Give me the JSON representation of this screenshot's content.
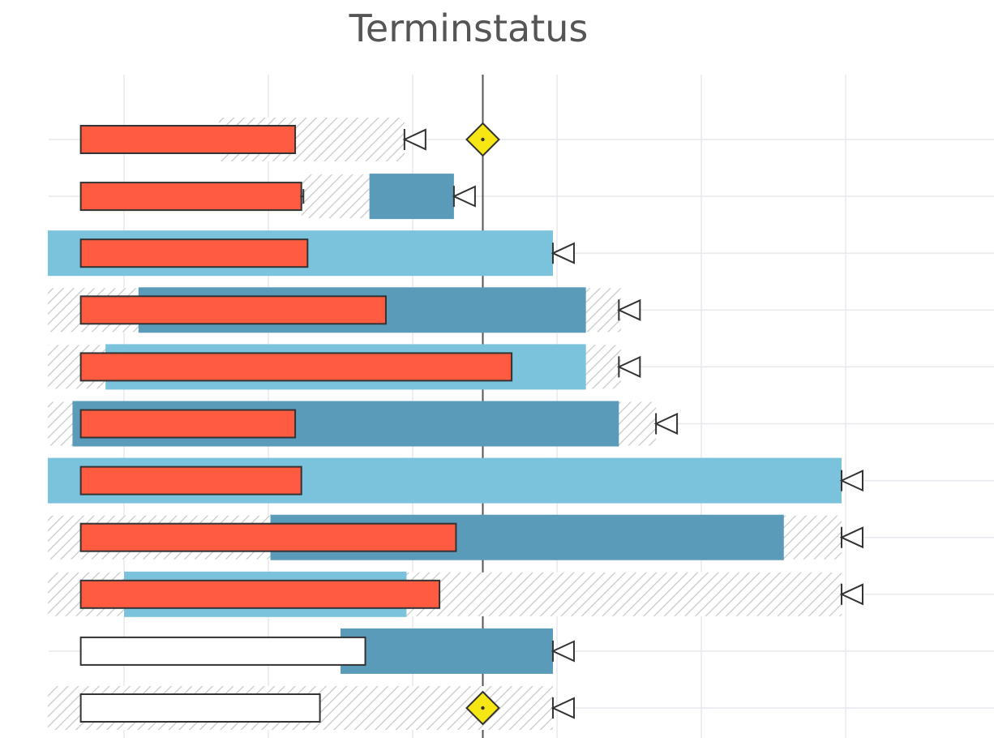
{
  "chart_data": {
    "type": "gantt",
    "title": "Terminstatus",
    "x_unit": "days",
    "xlim": [
      3.3,
      49.2
    ],
    "x_gridlines": [
      7,
      14,
      21,
      28,
      35,
      42
    ],
    "today": 24.4,
    "colors": {
      "actual": "#fe5b41",
      "actual_pending": "#ffffff",
      "plan_light": "#7bc3dc",
      "plan_dark": "#5a9bba",
      "milestone": "#f5e614",
      "hatch": "#c8c8c8",
      "grid": "#e8e8ee",
      "today_line": "#555555"
    },
    "rows": [
      {
        "baseline": [
          11.6,
          20.6
        ],
        "plan": null,
        "actual": [
          4.9,
          15.3
        ],
        "actual_state": "late",
        "deadline": 20.6,
        "milestone": 24.4
      },
      {
        "baseline": [
          15.6,
          18.9
        ],
        "plan": {
          "range": [
            18.9,
            23.0
          ],
          "style": "dark"
        },
        "actual": [
          4.9,
          15.6
        ],
        "actual_state": "late",
        "tick": 15.7,
        "deadline": 23.0
      },
      {
        "baseline": null,
        "plan": {
          "range": [
            3.3,
            27.8
          ],
          "style": "light"
        },
        "actual": [
          4.9,
          15.9
        ],
        "actual_state": "late",
        "deadline": 27.8
      },
      {
        "baseline": [
          3.3,
          31.1
        ],
        "plan": {
          "range": [
            7.7,
            29.4
          ],
          "style": "dark"
        },
        "actual": [
          4.9,
          19.7
        ],
        "actual_state": "late",
        "deadline": 31.0
      },
      {
        "baseline": [
          3.3,
          31.1
        ],
        "plan": {
          "range": [
            6.1,
            29.4
          ],
          "style": "light"
        },
        "actual": [
          4.9,
          25.8
        ],
        "actual_state": "late",
        "deadline": 31.0
      },
      {
        "baseline": [
          3.3,
          32.8
        ],
        "plan": {
          "range": [
            4.5,
            31.0
          ],
          "style": "dark"
        },
        "actual": [
          4.9,
          15.3
        ],
        "actual_state": "late",
        "deadline": 32.8
      },
      {
        "baseline": null,
        "plan": {
          "range": [
            3.3,
            41.8
          ],
          "style": "light"
        },
        "actual": [
          4.9,
          15.6
        ],
        "actual_state": "late",
        "deadline": 41.8
      },
      {
        "baseline": [
          3.3,
          41.8
        ],
        "plan": {
          "range": [
            14.1,
            39.0
          ],
          "style": "dark"
        },
        "actual": [
          4.9,
          23.1
        ],
        "actual_state": "late",
        "deadline": 41.8
      },
      {
        "baseline": [
          3.3,
          41.8
        ],
        "plan": {
          "range": [
            7.0,
            20.7
          ],
          "style": "light"
        },
        "actual": [
          4.9,
          22.3
        ],
        "actual_state": "late",
        "deadline": 41.8
      },
      {
        "baseline": null,
        "plan": {
          "range": [
            17.5,
            27.8
          ],
          "style": "dark"
        },
        "actual": [
          4.9,
          18.7
        ],
        "actual_state": "pending",
        "deadline": 27.8
      },
      {
        "baseline": [
          3.3,
          27.8
        ],
        "plan": null,
        "actual": [
          4.9,
          16.5
        ],
        "actual_state": "pending",
        "deadline": 27.8,
        "milestone": 24.4
      }
    ]
  }
}
